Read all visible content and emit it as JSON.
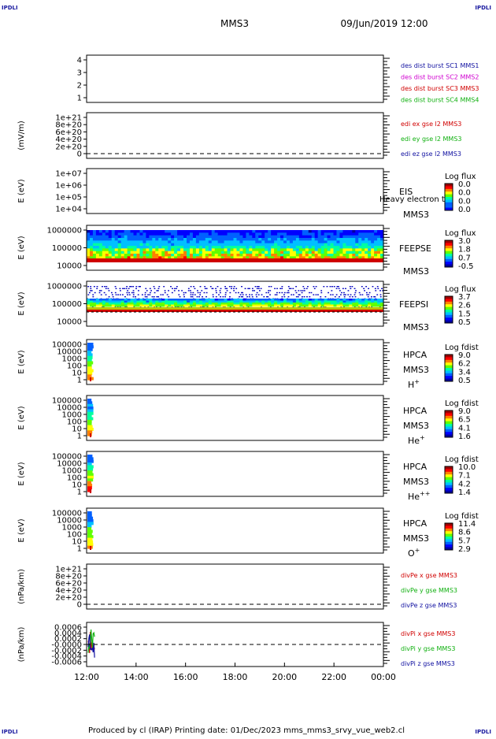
{
  "header": {
    "corner_tl": "IPDLI",
    "corner_tr": "IPDLI",
    "corner_bl": "IPDLI",
    "corner_br": "IPDLI",
    "title": "MMS3",
    "date": "09/Jun/2019 12:00"
  },
  "footer": {
    "text": "Produced by cl (IRAP)   Printing date: 01/Dec/2023   mms_mms3_srvy_vue_web2.cl"
  },
  "colors": {
    "blue": "#1010a0",
    "magenta": "#d000d0",
    "red": "#d00000",
    "green": "#10b010",
    "spectrum": [
      "#0000a0",
      "#0000ff",
      "#0060ff",
      "#00c0ff",
      "#00ffa0",
      "#60ff00",
      "#ffff00",
      "#ff8000",
      "#ff0000",
      "#a00000"
    ]
  },
  "chart_data": {
    "type": "time-series-panels",
    "x": {
      "tick_labels": [
        "12:00",
        "14:00",
        "16:00",
        "18:00",
        "20:00",
        "22:00",
        "00:00"
      ],
      "range_hours": [
        12,
        24
      ]
    },
    "panels": [
      {
        "id": "burst",
        "type": "line",
        "ylabel": "",
        "tick_labels": [
          "4",
          "3",
          "2",
          "1"
        ],
        "ylim": [
          0.5,
          4.5
        ],
        "legend": [
          {
            "text": "des dist burst SC1 MMS1",
            "color": "#1010a0"
          },
          {
            "text": "des dist burst SC2 MMS2",
            "color": "#d000d0"
          },
          {
            "text": "des dist burst SC3 MMS3",
            "color": "#d00000"
          },
          {
            "text": "des dist burst SC4 MMS4",
            "color": "#10b010"
          }
        ]
      },
      {
        "id": "edi",
        "type": "line",
        "ylabel": "(mV/m)",
        "tick_labels": [
          "1e+21",
          "8e+20",
          "6e+20",
          "4e+20",
          "2e+20",
          "0"
        ],
        "ylim": [
          0,
          1e+21
        ],
        "zero_line": true,
        "legend": [
          {
            "text": "edi ex gse l2 MMS3",
            "color": "#d00000"
          },
          {
            "text": "edi ey gse l2 MMS3",
            "color": "#10b010"
          },
          {
            "text": "edi ez gse l2 MMS3",
            "color": "#1010a0"
          }
        ]
      },
      {
        "id": "eis",
        "type": "heatmap",
        "ylabel": "E (eV)",
        "tick_labels": [
          "1e+07",
          "1e+06",
          "1e+05",
          "1e+04"
        ],
        "yscale": "log",
        "ylim": [
          10000.0,
          10000000.0
        ],
        "instrument": [
          "EIS",
          "MMS3"
        ],
        "overlay_text": "Heavy electron to",
        "colorbar_title": "Log flux",
        "colorbar_labels": [
          "0.0",
          "0.0",
          "0.0",
          "0.0"
        ]
      },
      {
        "id": "feepse",
        "type": "heatmap",
        "ylabel": "E (eV)",
        "tick_labels": [
          "1000000",
          "100000",
          "10000"
        ],
        "yscale": "log",
        "ylim": [
          10000,
          1000000
        ],
        "instrument": [
          "FEEPSE",
          "MMS3"
        ],
        "colorbar_title": "Log flux",
        "colorbar_labels": [
          "3.0",
          "1.8",
          "0.7",
          "-0.5"
        ]
      },
      {
        "id": "feepsi",
        "type": "heatmap",
        "ylabel": "E (eV)",
        "tick_labels": [
          "1000000",
          "100000",
          "10000"
        ],
        "yscale": "log",
        "ylim": [
          10000,
          1000000
        ],
        "instrument": [
          "FEEPSI",
          "MMS3"
        ],
        "colorbar_title": "Log flux",
        "colorbar_labels": [
          "3.7",
          "2.6",
          "1.5",
          "0.5"
        ]
      },
      {
        "id": "hpca-h",
        "type": "heatmap",
        "ylabel": "E (eV)",
        "tick_labels": [
          "100000",
          "10000",
          "1000",
          "100",
          "10",
          "1"
        ],
        "yscale": "log",
        "ylim": [
          1,
          100000
        ],
        "instrument": [
          "HPCA",
          "MMS3"
        ],
        "species": "H",
        "species_sup": "+",
        "colorbar_title": "Log fdist",
        "colorbar_labels": [
          "9.0",
          "6.2",
          "3.4",
          "0.5"
        ]
      },
      {
        "id": "hpca-he",
        "type": "heatmap",
        "ylabel": "E (eV)",
        "tick_labels": [
          "100000",
          "10000",
          "1000",
          "100",
          "10",
          "1"
        ],
        "yscale": "log",
        "ylim": [
          1,
          100000
        ],
        "instrument": [
          "HPCA",
          "MMS3"
        ],
        "species": "He",
        "species_sup": "+",
        "colorbar_title": "Log fdist",
        "colorbar_labels": [
          "9.0",
          "6.5",
          "4.1",
          "1.6"
        ]
      },
      {
        "id": "hpca-he2",
        "type": "heatmap",
        "ylabel": "E (eV)",
        "tick_labels": [
          "100000",
          "10000",
          "1000",
          "100",
          "10",
          "1"
        ],
        "yscale": "log",
        "ylim": [
          1,
          100000
        ],
        "instrument": [
          "HPCA",
          "MMS3"
        ],
        "species": "He",
        "species_sup": "++",
        "colorbar_title": "Log fdist",
        "colorbar_labels": [
          "10.0",
          "7.1",
          "4.2",
          "1.4"
        ]
      },
      {
        "id": "hpca-o",
        "type": "heatmap",
        "ylabel": "E (eV)",
        "tick_labels": [
          "100000",
          "10000",
          "1000",
          "100",
          "10",
          "1"
        ],
        "yscale": "log",
        "ylim": [
          1,
          100000
        ],
        "instrument": [
          "HPCA",
          "MMS3"
        ],
        "species": "O",
        "species_sup": "+",
        "colorbar_title": "Log fdist",
        "colorbar_labels": [
          "11.4",
          "8.6",
          "5.7",
          "2.9"
        ]
      },
      {
        "id": "divpe",
        "type": "line",
        "ylabel": "(nPa/km)",
        "tick_labels": [
          "1e+21",
          "8e+20",
          "6e+20",
          "4e+20",
          "2e+20",
          "0"
        ],
        "ylim": [
          0,
          1e+21
        ],
        "zero_line": true,
        "legend": [
          {
            "text": "divPe x gse MMS3",
            "color": "#d00000"
          },
          {
            "text": "divPe y gse MMS3",
            "color": "#10b010"
          },
          {
            "text": "divPe z gse MMS3",
            "color": "#1010a0"
          }
        ]
      },
      {
        "id": "divpi",
        "type": "line",
        "ylabel": "(nPa/km)",
        "tick_labels": [
          "0.0006",
          "0.0004",
          "0.0002",
          "-0.0000",
          "-0.0002",
          "-0.0004",
          "-0.0006"
        ],
        "ylim": [
          -0.0006,
          0.0006
        ],
        "zero_line": true,
        "legend": [
          {
            "text": "divPi x gse MMS3",
            "color": "#d00000"
          },
          {
            "text": "divPi y gse MMS3",
            "color": "#10b010"
          },
          {
            "text": "divPi z gse MMS3",
            "color": "#1010a0"
          }
        ]
      }
    ]
  }
}
